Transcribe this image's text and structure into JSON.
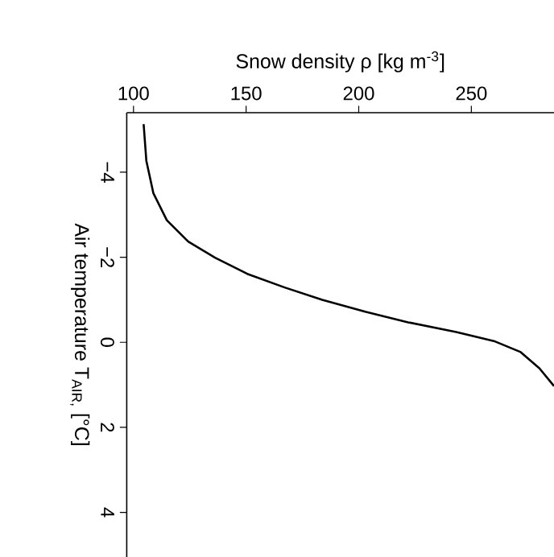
{
  "chart_data": {
    "type": "line",
    "xlabel": "Snow density ρ [kg m$^{-3}$]",
    "ylabel": "Air temperature T$_{AIR,}$ [°C]",
    "xlim": [
      97,
      286.7
    ],
    "ylim": [
      5.05,
      -5.4
    ],
    "xticks": [
      100,
      150,
      200,
      250
    ],
    "yticks": [
      {
        "value": -4,
        "label": "−4"
      },
      {
        "value": -2,
        "label": "−2"
      },
      0,
      2,
      4
    ],
    "series": [
      {
        "color": "#000000",
        "x": [
          104.5,
          105.7,
          108.8,
          114.8,
          124.3,
          136.2,
          150.5,
          167.1,
          183.8,
          202.9,
          221.9,
          243.3,
          260.0,
          271.9,
          280.2,
          286.7
        ],
        "values": [
          -5.13,
          -4.27,
          -3.51,
          -2.87,
          -2.37,
          -1.99,
          -1.61,
          -1.29,
          -1.0,
          -0.72,
          -0.47,
          -0.24,
          -0.03,
          0.23,
          0.61,
          1.03
        ]
      }
    ]
  }
}
